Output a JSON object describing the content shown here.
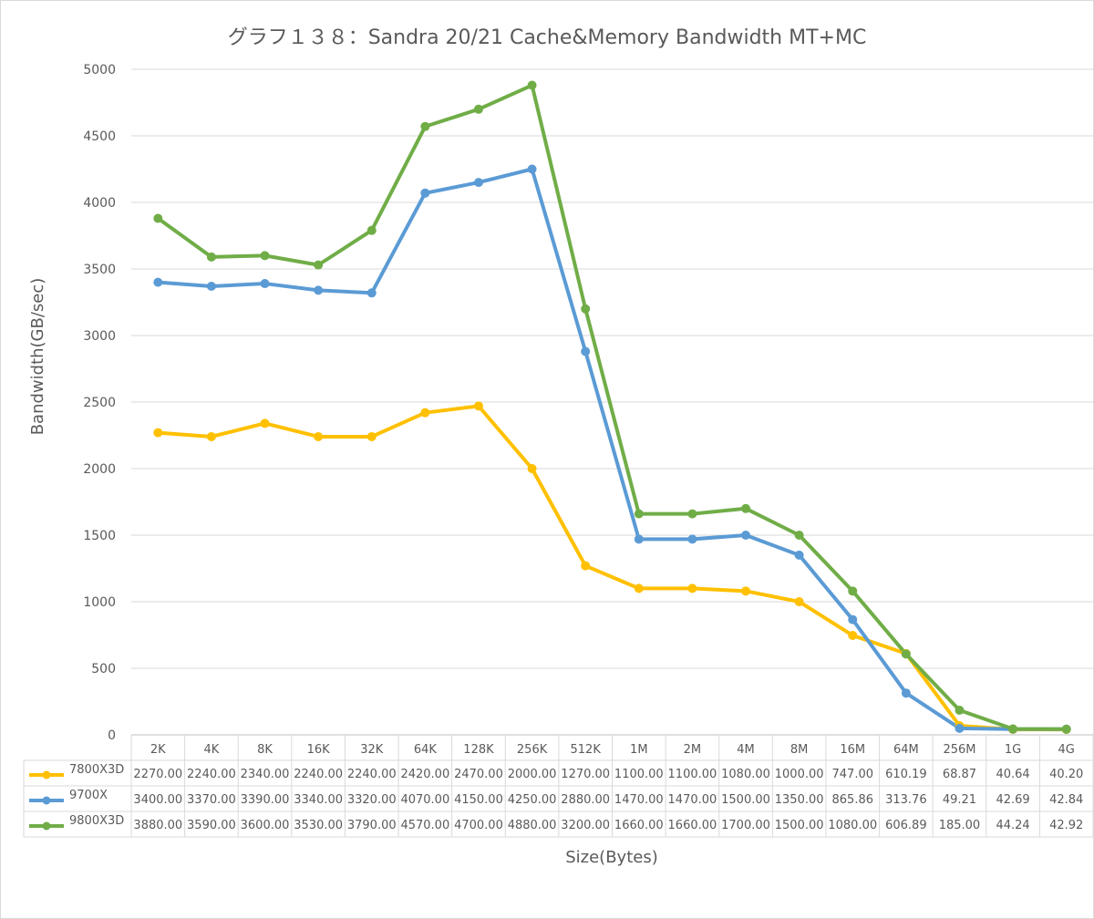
{
  "chart_data": {
    "type": "line",
    "title": "グラフ１３８：Sandra 20/21 Cache&Memory Bandwidth MT+MC",
    "xlabel": "Size(Bytes)",
    "ylabel": "Bandwidth(GB/sec)",
    "ylim": [
      0,
      5000
    ],
    "yticks": [
      0,
      500,
      1000,
      1500,
      2000,
      2500,
      3000,
      3500,
      4000,
      4500,
      5000
    ],
    "grid": true,
    "legend_placement": "data-table-left",
    "categories": [
      "2K",
      "4K",
      "8K",
      "16K",
      "32K",
      "64K",
      "128K",
      "256K",
      "512K",
      "1M",
      "2M",
      "4M",
      "8M",
      "16M",
      "64M",
      "256M",
      "1G",
      "4G"
    ],
    "series": [
      {
        "name": "7800X3D",
        "color": "#ffc000",
        "values": [
          2270.0,
          2240.0,
          2340.0,
          2240.0,
          2240.0,
          2420.0,
          2470.0,
          2000.0,
          1270.0,
          1100.0,
          1100.0,
          1080.0,
          1000.0,
          747.0,
          610.19,
          68.87,
          40.64,
          40.2
        ],
        "labels": [
          "2270.00",
          "2240.00",
          "2340.00",
          "2240.00",
          "2240.00",
          "2420.00",
          "2470.00",
          "2000.00",
          "1270.00",
          "1100.00",
          "1100.00",
          "1080.00",
          "1000.00",
          "747.00",
          "610.19",
          "68.87",
          "40.64",
          "40.20"
        ]
      },
      {
        "name": "9700X",
        "color": "#5b9bd5",
        "values": [
          3400.0,
          3370.0,
          3390.0,
          3340.0,
          3320.0,
          4070.0,
          4150.0,
          4250.0,
          2880.0,
          1470.0,
          1470.0,
          1500.0,
          1350.0,
          865.86,
          313.76,
          49.21,
          42.69,
          42.84
        ],
        "labels": [
          "3400.00",
          "3370.00",
          "3390.00",
          "3340.00",
          "3320.00",
          "4070.00",
          "4150.00",
          "4250.00",
          "2880.00",
          "1470.00",
          "1470.00",
          "1500.00",
          "1350.00",
          "865.86",
          "313.76",
          "49.21",
          "42.69",
          "42.84"
        ]
      },
      {
        "name": "9800X3D",
        "color": "#70ad47",
        "values": [
          3880.0,
          3590.0,
          3600.0,
          3530.0,
          3790.0,
          4570.0,
          4700.0,
          4880.0,
          3200.0,
          1660.0,
          1660.0,
          1700.0,
          1500.0,
          1080.0,
          606.89,
          185.0,
          44.24,
          42.92
        ],
        "labels": [
          "3880.00",
          "3590.00",
          "3600.00",
          "3530.00",
          "3790.00",
          "4570.00",
          "4700.00",
          "4880.00",
          "3200.00",
          "1660.00",
          "1660.00",
          "1700.00",
          "1500.00",
          "1080.00",
          "606.89",
          "185.00",
          "44.24",
          "42.92"
        ]
      }
    ]
  }
}
